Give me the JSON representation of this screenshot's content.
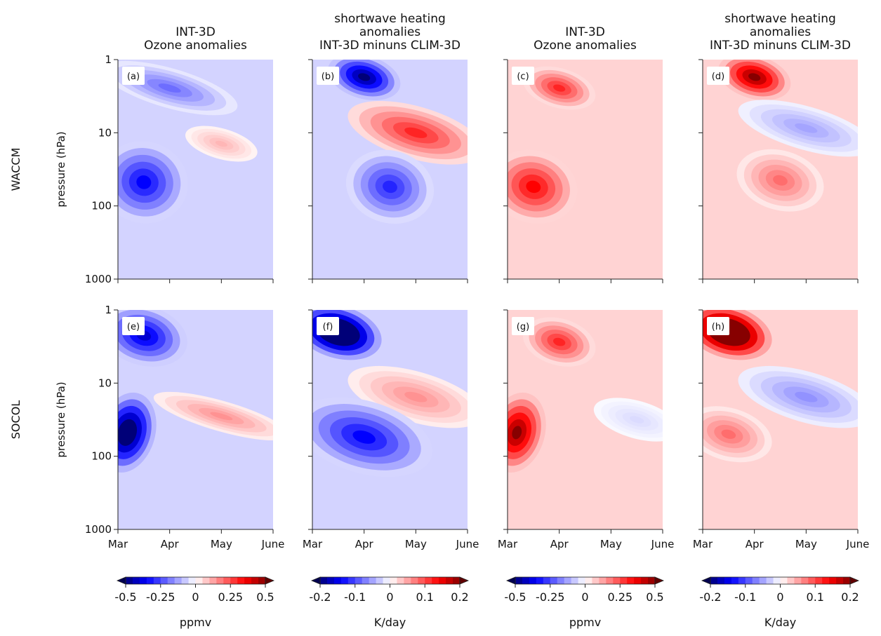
{
  "figure": {
    "row_labels": [
      "WACCM",
      "SOCOL"
    ],
    "column_titles": [
      [
        "INT-3D",
        "Ozone anomalies"
      ],
      [
        "shortwave heating",
        "anomalies",
        "INT-3D minuns CLIM-3D"
      ],
      [
        "INT-3D",
        "Ozone anomalies"
      ],
      [
        "shortwave heating",
        "anomalies",
        "INT-3D minuns CLIM-3D"
      ]
    ],
    "ylabel": "pressure (hPa)",
    "yticks": [
      "1",
      "10",
      "100",
      "1000"
    ],
    "xticks": [
      "Mar",
      "Apr",
      "May",
      "June"
    ],
    "panel_labels": [
      "(a)",
      "(b)",
      "(c)",
      "(d)",
      "(e)",
      "(f)",
      "(g)",
      "(h)"
    ],
    "colorbars": [
      {
        "ticks": [
          "-0.5",
          "-0.25",
          "0",
          "0.25",
          "0.5"
        ],
        "unit": "ppmv"
      },
      {
        "ticks": [
          "-0.2",
          "-0.1",
          "0",
          "0.1",
          "0.2"
        ],
        "unit": "K/day"
      },
      {
        "ticks": [
          "-0.5",
          "-0.25",
          "0",
          "0.25",
          "0.5"
        ],
        "unit": "ppmv"
      },
      {
        "ticks": [
          "-0.2",
          "-0.1",
          "0",
          "0.1",
          "0.2"
        ],
        "unit": "K/day"
      }
    ]
  },
  "chart_data": [
    {
      "panel": "(a)",
      "type": "heatmap",
      "model": "WACCM",
      "variable": "Ozone anomalies",
      "unit": "ppmv",
      "y_scale": "log",
      "ylim": [
        1000,
        1
      ],
      "x_range": [
        "Mar",
        "June"
      ],
      "colormap": "bwr",
      "clim": [
        -0.5,
        0.5
      ],
      "features": [
        {
          "sign": "negative",
          "peak": -0.35,
          "time": "Mar-Apr",
          "pressure_hPa": [
            15,
            150
          ]
        },
        {
          "sign": "negative",
          "peak": -0.2,
          "time": "Mar-May",
          "pressure_hPa": [
            1.5,
            4
          ]
        },
        {
          "sign": "positive",
          "peak": 0.1,
          "time": "May",
          "pressure_hPa": [
            10,
            20
          ]
        }
      ]
    },
    {
      "panel": "(b)",
      "type": "heatmap",
      "model": "WACCM",
      "variable": "shortwave heating anomalies INT-3D minus CLIM-3D",
      "unit": "K/day",
      "y_scale": "log",
      "ylim": [
        1000,
        1
      ],
      "x_range": [
        "Mar",
        "June"
      ],
      "colormap": "bwr",
      "clim": [
        -0.2,
        0.2
      ],
      "features": [
        {
          "sign": "negative",
          "peak": -0.2,
          "time": "Apr",
          "pressure_hPa": [
            1,
            3
          ]
        },
        {
          "sign": "positive",
          "peak": 0.12,
          "time": "Apr-June",
          "pressure_hPa": [
            5,
            20
          ]
        },
        {
          "sign": "negative",
          "peak": -0.12,
          "time": "Apr-May",
          "pressure_hPa": [
            20,
            150
          ]
        }
      ]
    },
    {
      "panel": "(c)",
      "type": "heatmap",
      "model": "WACCM",
      "variable": "Ozone anomalies",
      "unit": "ppmv",
      "y_scale": "log",
      "ylim": [
        1000,
        1
      ],
      "x_range": [
        "Mar",
        "June"
      ],
      "colormap": "bwr",
      "clim": [
        -0.5,
        0.5
      ],
      "features": [
        {
          "sign": "positive",
          "peak": 0.35,
          "time": "Mar-Apr",
          "pressure_hPa": [
            20,
            150
          ]
        },
        {
          "sign": "positive",
          "peak": 0.3,
          "time": "Apr",
          "pressure_hPa": [
            1.5,
            4
          ]
        }
      ]
    },
    {
      "panel": "(d)",
      "type": "heatmap",
      "model": "WACCM",
      "variable": "shortwave heating anomalies INT-3D minus CLIM-3D",
      "unit": "K/day",
      "y_scale": "log",
      "ylim": [
        1000,
        1
      ],
      "x_range": [
        "Mar",
        "June"
      ],
      "colormap": "bwr",
      "clim": [
        -0.2,
        0.2
      ],
      "features": [
        {
          "sign": "positive",
          "peak": 0.2,
          "time": "Apr",
          "pressure_hPa": [
            1,
            3
          ]
        },
        {
          "sign": "negative",
          "peak": -0.05,
          "time": "Apr-June",
          "pressure_hPa": [
            5,
            15
          ]
        },
        {
          "sign": "positive",
          "peak": 0.08,
          "time": "Apr-May",
          "pressure_hPa": [
            20,
            100
          ]
        }
      ]
    },
    {
      "panel": "(e)",
      "type": "heatmap",
      "model": "SOCOL",
      "variable": "Ozone anomalies",
      "unit": "ppmv",
      "y_scale": "log",
      "ylim": [
        1000,
        1
      ],
      "x_range": [
        "Mar",
        "June"
      ],
      "colormap": "bwr",
      "clim": [
        -0.5,
        0.5
      ],
      "features": [
        {
          "sign": "negative",
          "peak": -0.6,
          "time": "Mar",
          "pressure_hPa": [
            15,
            150
          ]
        },
        {
          "sign": "negative",
          "peak": -0.4,
          "time": "Mar-Apr",
          "pressure_hPa": [
            1,
            5
          ]
        },
        {
          "sign": "positive",
          "peak": 0.15,
          "time": "Apr-June",
          "pressure_hPa": [
            20,
            40
          ]
        }
      ]
    },
    {
      "panel": "(f)",
      "type": "heatmap",
      "model": "SOCOL",
      "variable": "shortwave heating anomalies INT-3D minus CLIM-3D",
      "unit": "K/day",
      "y_scale": "log",
      "ylim": [
        1000,
        1
      ],
      "x_range": [
        "Mar",
        "June"
      ],
      "colormap": "bwr",
      "clim": [
        -0.2,
        0.2
      ],
      "features": [
        {
          "sign": "negative",
          "peak": -0.3,
          "time": "Mar-Apr",
          "pressure_hPa": [
            1,
            4
          ]
        },
        {
          "sign": "positive",
          "peak": 0.06,
          "time": "Apr-June",
          "pressure_hPa": [
            8,
            30
          ]
        },
        {
          "sign": "negative",
          "peak": -0.14,
          "time": "Mar-May",
          "pressure_hPa": [
            20,
            150
          ]
        }
      ]
    },
    {
      "panel": "(g)",
      "type": "heatmap",
      "model": "SOCOL",
      "variable": "Ozone anomalies",
      "unit": "ppmv",
      "y_scale": "log",
      "ylim": [
        1000,
        1
      ],
      "x_range": [
        "Mar",
        "June"
      ],
      "colormap": "bwr",
      "clim": [
        -0.5,
        0.5
      ],
      "features": [
        {
          "sign": "positive",
          "peak": 0.5,
          "time": "Mar",
          "pressure_hPa": [
            15,
            150
          ]
        },
        {
          "sign": "positive",
          "peak": 0.3,
          "time": "Apr",
          "pressure_hPa": [
            1.5,
            5
          ]
        },
        {
          "sign": "negative",
          "peak": -0.05,
          "time": "May-June",
          "pressure_hPa": [
            20,
            50
          ]
        }
      ]
    },
    {
      "panel": "(h)",
      "type": "heatmap",
      "model": "SOCOL",
      "variable": "shortwave heating anomalies INT-3D minus CLIM-3D",
      "unit": "K/day",
      "y_scale": "log",
      "ylim": [
        1000,
        1
      ],
      "x_range": [
        "Mar",
        "June"
      ],
      "colormap": "bwr",
      "clim": [
        -0.2,
        0.2
      ],
      "features": [
        {
          "sign": "positive",
          "peak": 0.3,
          "time": "Mar-Apr",
          "pressure_hPa": [
            1,
            4
          ]
        },
        {
          "sign": "negative",
          "peak": -0.06,
          "time": "Apr-June",
          "pressure_hPa": [
            8,
            30
          ]
        },
        {
          "sign": "positive",
          "peak": 0.08,
          "time": "Mar-Apr",
          "pressure_hPa": [
            25,
            100
          ]
        }
      ]
    }
  ]
}
